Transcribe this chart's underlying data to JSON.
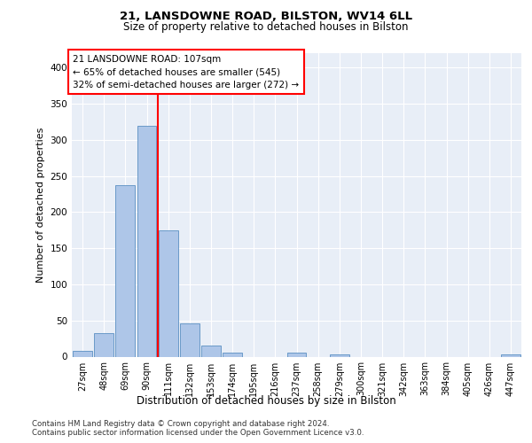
{
  "title1": "21, LANSDOWNE ROAD, BILSTON, WV14 6LL",
  "title2": "Size of property relative to detached houses in Bilston",
  "xlabel": "Distribution of detached houses by size in Bilston",
  "ylabel": "Number of detached properties",
  "bar_labels": [
    "27sqm",
    "48sqm",
    "69sqm",
    "90sqm",
    "111sqm",
    "132sqm",
    "153sqm",
    "174sqm",
    "195sqm",
    "216sqm",
    "237sqm",
    "258sqm",
    "279sqm",
    "300sqm",
    "321sqm",
    "342sqm",
    "363sqm",
    "384sqm",
    "405sqm",
    "426sqm",
    "447sqm"
  ],
  "bar_values": [
    8,
    32,
    237,
    320,
    175,
    46,
    15,
    5,
    0,
    0,
    5,
    0,
    3,
    0,
    0,
    0,
    0,
    0,
    0,
    0,
    3
  ],
  "bar_color": "#aec6e8",
  "bar_edge_color": "#5a8fc2",
  "background_color": "#e8eef7",
  "grid_color": "#ffffff",
  "red_line_x": 3.52,
  "annotation_title": "21 LANSDOWNE ROAD: 107sqm",
  "annotation_line1": "← 65% of detached houses are smaller (545)",
  "annotation_line2": "32% of semi-detached houses are larger (272) →",
  "ylim": [
    0,
    420
  ],
  "yticks": [
    0,
    50,
    100,
    150,
    200,
    250,
    300,
    350,
    400
  ],
  "footer1": "Contains HM Land Registry data © Crown copyright and database right 2024.",
  "footer2": "Contains public sector information licensed under the Open Government Licence v3.0."
}
